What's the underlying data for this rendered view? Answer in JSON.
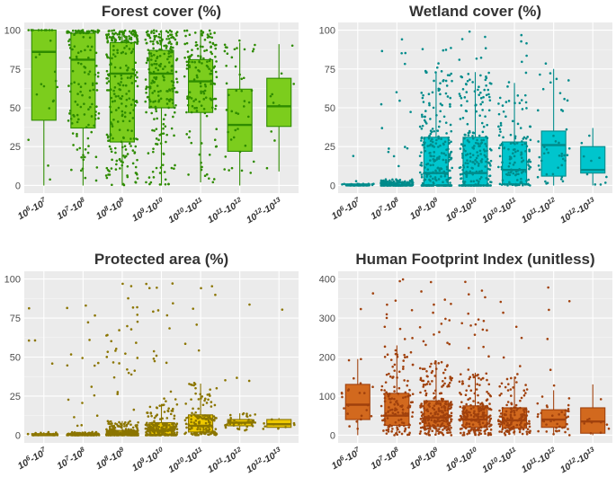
{
  "chart_data": [
    {
      "type": "boxplot",
      "title": "Forest cover (%)",
      "color": "#7ccd1d",
      "point_color": "#2e8b00",
      "ylim": [
        0,
        100
      ],
      "yticks": [
        0,
        25,
        50,
        75,
        100
      ],
      "categories": [
        {
          "base": "10",
          "e1": "6",
          "e2": "7"
        },
        {
          "base": "10",
          "e1": "7",
          "e2": "8"
        },
        {
          "base": "10",
          "e1": "8",
          "e2": "9"
        },
        {
          "base": "10",
          "e1": "9",
          "e2": "10"
        },
        {
          "base": "10",
          "e1": "10",
          "e2": "11"
        },
        {
          "base": "10",
          "e1": "11",
          "e2": "12"
        },
        {
          "base": "10",
          "e1": "12",
          "e2": "13"
        }
      ],
      "boxes": [
        {
          "q1": 42,
          "median": 86,
          "q3": 100,
          "wlow": 0,
          "whigh": 100,
          "n": 25
        },
        {
          "q1": 37,
          "median": 81,
          "q3": 98,
          "wlow": 0,
          "whigh": 100,
          "n": 150
        },
        {
          "q1": 28,
          "median": 72,
          "q3": 92,
          "wlow": 0,
          "whigh": 100,
          "n": 260
        },
        {
          "q1": 50,
          "median": 72,
          "q3": 87,
          "wlow": 0,
          "whigh": 100,
          "n": 230
        },
        {
          "q1": 47,
          "median": 67,
          "q3": 81,
          "wlow": 2,
          "whigh": 100,
          "n": 150
        },
        {
          "q1": 22,
          "median": 39,
          "q3": 62,
          "wlow": 0,
          "whigh": 92,
          "n": 45
        },
        {
          "q1": 38,
          "median": 51,
          "q3": 69,
          "wlow": 9,
          "whigh": 91,
          "n": 10
        }
      ]
    },
    {
      "type": "boxplot",
      "title": "Wetland cover (%)",
      "color": "#00c5cd",
      "point_color": "#008b8b",
      "ylim": [
        0,
        100
      ],
      "yticks": [
        0,
        25,
        50,
        75,
        100
      ],
      "categories": [
        {
          "base": "10",
          "e1": "6",
          "e2": "7"
        },
        {
          "base": "10",
          "e1": "7",
          "e2": "8"
        },
        {
          "base": "10",
          "e1": "8",
          "e2": "9"
        },
        {
          "base": "10",
          "e1": "9",
          "e2": "10"
        },
        {
          "base": "10",
          "e1": "10",
          "e2": "11"
        },
        {
          "base": "10",
          "e1": "11",
          "e2": "12"
        },
        {
          "base": "10",
          "e1": "12",
          "e2": "13"
        }
      ],
      "boxes": [
        {
          "q1": 0,
          "median": 0,
          "q3": 1,
          "wlow": 0,
          "whigh": 1,
          "n": 25
        },
        {
          "q1": 0,
          "median": 0,
          "q3": 2,
          "wlow": 0,
          "whigh": 4,
          "n": 150
        },
        {
          "q1": 0,
          "median": 8,
          "q3": 31,
          "wlow": 0,
          "whigh": 73,
          "n": 260
        },
        {
          "q1": 0,
          "median": 8,
          "q3": 31,
          "wlow": 0,
          "whigh": 73,
          "n": 230
        },
        {
          "q1": 1,
          "median": 10,
          "q3": 28,
          "wlow": 0,
          "whigh": 66,
          "n": 150
        },
        {
          "q1": 6,
          "median": 26,
          "q3": 35,
          "wlow": 0,
          "whigh": 75,
          "n": 45
        },
        {
          "q1": 8,
          "median": 10,
          "q3": 25,
          "wlow": 0,
          "whigh": 37,
          "n": 10
        }
      ]
    },
    {
      "type": "boxplot",
      "title": "Protected area (%)",
      "color": "#eec900",
      "point_color": "#8b7500",
      "ylim": [
        0,
        100
      ],
      "yticks": [
        0,
        25,
        50,
        75,
        100
      ],
      "categories": [
        {
          "base": "10",
          "e1": "6",
          "e2": "7"
        },
        {
          "base": "10",
          "e1": "7",
          "e2": "8"
        },
        {
          "base": "10",
          "e1": "8",
          "e2": "9"
        },
        {
          "base": "10",
          "e1": "9",
          "e2": "10"
        },
        {
          "base": "10",
          "e1": "10",
          "e2": "11"
        },
        {
          "base": "10",
          "e1": "11",
          "e2": "12"
        },
        {
          "base": "10",
          "e1": "12",
          "e2": "13"
        }
      ],
      "boxes": [
        {
          "q1": 0,
          "median": 0,
          "q3": 1,
          "wlow": 0,
          "whigh": 2,
          "n": 25
        },
        {
          "q1": 0,
          "median": 0,
          "q3": 1,
          "wlow": 0,
          "whigh": 2,
          "n": 150
        },
        {
          "q1": 0,
          "median": 1,
          "q3": 3,
          "wlow": 0,
          "whigh": 9,
          "n": 260
        },
        {
          "q1": 0,
          "median": 3,
          "q3": 8,
          "wlow": 0,
          "whigh": 20,
          "n": 230
        },
        {
          "q1": 2,
          "median": 6,
          "q3": 13,
          "wlow": 0,
          "whigh": 33,
          "n": 150
        },
        {
          "q1": 6,
          "median": 8,
          "q3": 10,
          "wlow": 3,
          "whigh": 14,
          "n": 45
        },
        {
          "q1": 5,
          "median": 7,
          "q3": 10,
          "wlow": 4,
          "whigh": 11,
          "n": 10
        }
      ]
    },
    {
      "type": "boxplot",
      "title": "Human Footprint Index (unitless)",
      "color": "#d2691e",
      "point_color": "#a0410d",
      "ylim": [
        0,
        400
      ],
      "yticks": [
        0,
        100,
        200,
        300,
        400
      ],
      "categories": [
        {
          "base": "10",
          "e1": "6",
          "e2": "7"
        },
        {
          "base": "10",
          "e1": "7",
          "e2": "8"
        },
        {
          "base": "10",
          "e1": "8",
          "e2": "9"
        },
        {
          "base": "10",
          "e1": "9",
          "e2": "10"
        },
        {
          "base": "10",
          "e1": "10",
          "e2": "11"
        },
        {
          "base": "10",
          "e1": "11",
          "e2": "12"
        },
        {
          "base": "10",
          "e1": "12",
          "e2": "13"
        }
      ],
      "boxes": [
        {
          "q1": 40,
          "median": 78,
          "q3": 130,
          "wlow": 0,
          "whigh": 195,
          "n": 25
        },
        {
          "q1": 25,
          "median": 50,
          "q3": 107,
          "wlow": 0,
          "whigh": 230,
          "n": 150
        },
        {
          "q1": 22,
          "median": 45,
          "q3": 88,
          "wlow": 0,
          "whigh": 190,
          "n": 260
        },
        {
          "q1": 20,
          "median": 40,
          "q3": 75,
          "wlow": 0,
          "whigh": 160,
          "n": 230
        },
        {
          "q1": 18,
          "median": 38,
          "q3": 70,
          "wlow": 0,
          "whigh": 150,
          "n": 150
        },
        {
          "q1": 20,
          "median": 40,
          "q3": 65,
          "wlow": 0,
          "whigh": 115,
          "n": 45
        },
        {
          "q1": 5,
          "median": 35,
          "q3": 70,
          "wlow": 0,
          "whigh": 130,
          "n": 10
        }
      ]
    }
  ]
}
